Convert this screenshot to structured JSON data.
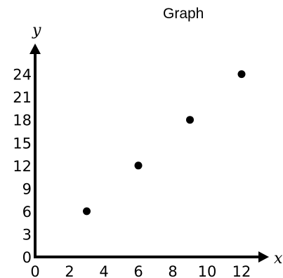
{
  "title": "Graph",
  "chart_data": {
    "type": "scatter",
    "title": "Graph",
    "xlabel": "x",
    "ylabel": "y",
    "x_ticks": [
      0,
      2,
      4,
      6,
      8,
      10,
      12
    ],
    "y_ticks": [
      0,
      3,
      6,
      9,
      12,
      15,
      18,
      21,
      24
    ],
    "xlim": [
      0,
      13.5
    ],
    "ylim": [
      0,
      27
    ],
    "grid": false,
    "series": [
      {
        "x": [
          3,
          6,
          9,
          12
        ],
        "y": [
          6,
          12,
          18,
          24
        ]
      }
    ],
    "colors": {
      "axis": "#000000",
      "point": "#000000"
    }
  }
}
